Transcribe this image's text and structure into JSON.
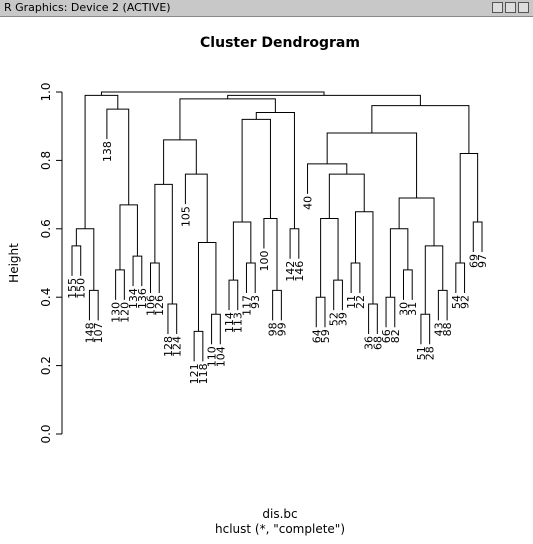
{
  "window_title": "R Graphics: Device 2 (ACTIVE)",
  "chart_data": {
    "type": "dendrogram",
    "title": "Cluster Dendrogram",
    "x_label": "dis.bc",
    "subtitle": "hclust (*, \"complete\")",
    "y_label": "Height",
    "ylim": [
      0,
      1
    ],
    "yticks": [
      {
        "value": 0,
        "label": "0.0"
      },
      {
        "value": 0.2,
        "label": "0.2"
      },
      {
        "value": 0.4,
        "label": "0.4"
      },
      {
        "value": 0.6,
        "label": "0.6"
      },
      {
        "value": 0.8,
        "label": "0.8"
      },
      {
        "value": 1,
        "label": "1.0"
      }
    ],
    "leaves": [
      "155",
      "150",
      "148",
      "107",
      "130",
      "120",
      "134",
      "136",
      "138",
      "106",
      "126",
      "128",
      "124",
      "121",
      "118",
      "110",
      "104",
      "105",
      "114",
      "113",
      "117",
      "93",
      "98",
      "99",
      "100",
      "142",
      "146",
      "64",
      "59",
      "52",
      "39",
      "11",
      "22",
      "36",
      "68",
      "40",
      "66",
      "82",
      "30",
      "31",
      "51",
      "28",
      "43",
      "88",
      "54",
      "92",
      "69",
      "97"
    ],
    "merges": [
      [
        -1,
        -2,
        0.55
      ],
      [
        -3,
        -4,
        0.42
      ],
      [
        1,
        2,
        0.6
      ],
      [
        -5,
        -6,
        0.48
      ],
      [
        -7,
        -8,
        0.52
      ],
      [
        4,
        5,
        0.67
      ],
      [
        -9,
        6,
        0.95
      ],
      [
        3,
        7,
        0.99
      ],
      [
        -10,
        -11,
        0.5
      ],
      [
        -12,
        -13,
        0.38
      ],
      [
        9,
        10,
        0.73
      ],
      [
        -14,
        -15,
        0.3
      ],
      [
        -16,
        -17,
        0.35
      ],
      [
        12,
        13,
        0.56
      ],
      [
        -18,
        14,
        0.76
      ],
      [
        11,
        15,
        0.86
      ],
      [
        -19,
        -20,
        0.45
      ],
      [
        -21,
        -22,
        0.5
      ],
      [
        17,
        18,
        0.62
      ],
      [
        -23,
        -24,
        0.42
      ],
      [
        -25,
        20,
        0.63
      ],
      [
        19,
        21,
        0.92
      ],
      [
        -26,
        -27,
        0.6
      ],
      [
        22,
        23,
        0.94
      ],
      [
        16,
        24,
        0.98
      ],
      [
        -28,
        -29,
        0.4
      ],
      [
        -30,
        -31,
        0.45
      ],
      [
        26,
        27,
        0.63
      ],
      [
        -32,
        -33,
        0.5
      ],
      [
        -34,
        -35,
        0.38
      ],
      [
        29,
        30,
        0.65
      ],
      [
        28,
        31,
        0.76
      ],
      [
        -36,
        32,
        0.79
      ],
      [
        -37,
        -38,
        0.4
      ],
      [
        -39,
        -40,
        0.48
      ],
      [
        34,
        35,
        0.6
      ],
      [
        -41,
        -42,
        0.35
      ],
      [
        -43,
        -44,
        0.42
      ],
      [
        37,
        38,
        0.55
      ],
      [
        36,
        39,
        0.69
      ],
      [
        33,
        40,
        0.88
      ],
      [
        -45,
        -46,
        0.5
      ],
      [
        -47,
        -48,
        0.62
      ],
      [
        42,
        43,
        0.82
      ],
      [
        41,
        44,
        0.96
      ],
      [
        25,
        45,
        0.99
      ],
      [
        8,
        46,
        1.0
      ]
    ]
  }
}
